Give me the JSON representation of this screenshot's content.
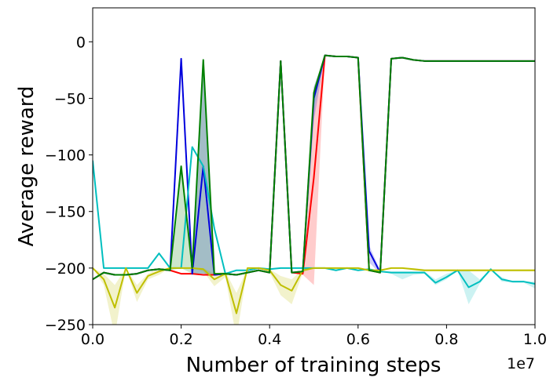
{
  "chart_data": {
    "type": "line",
    "title": "",
    "xlabel": "Number of training steps",
    "ylabel": "Average reward",
    "x_offset_label": "1e7",
    "xlim": [
      0,
      1.0
    ],
    "ylim": [
      -250,
      30
    ],
    "x_ticks": [
      0.0,
      0.2,
      0.4,
      0.6,
      0.8,
      1.0
    ],
    "x_tick_labels": [
      "0.0",
      "0.2",
      "0.4",
      "0.6",
      "0.8",
      "1.0"
    ],
    "y_ticks": [
      0,
      -50,
      -100,
      -150,
      -200,
      -250
    ],
    "y_tick_labels": [
      "0",
      "−50",
      "−100",
      "−150",
      "−200",
      "−250"
    ],
    "grid": false,
    "legend": "none",
    "series": [
      {
        "color": "#ff0000",
        "band_opacity": 0.2,
        "x": [
          0,
          0.025,
          0.05,
          0.075,
          0.1,
          0.125,
          0.15,
          0.175,
          0.2,
          0.225,
          0.25,
          0.275,
          0.3,
          0.325,
          0.35,
          0.375,
          0.4,
          0.425,
          0.45,
          0.475,
          0.5,
          0.525,
          0.55,
          0.575,
          0.6,
          0.625,
          0.65,
          0.675,
          0.7,
          0.725,
          0.75,
          0.775,
          0.8,
          0.825,
          0.85,
          0.875,
          0.9,
          0.925,
          0.95,
          0.975,
          1.0
        ],
        "values": [
          -210,
          -204,
          -206,
          -206,
          -205,
          -202,
          -201,
          -202,
          -205,
          -205,
          -206,
          -206,
          -205,
          -206,
          -204,
          -202,
          -204,
          -17,
          -204,
          -205,
          -120,
          -12,
          -13,
          -13,
          -14,
          -202,
          -204,
          -15,
          -14,
          -16,
          -17,
          -17,
          -17,
          -17,
          -17,
          -17,
          -17,
          -17,
          -17,
          -17,
          -17
        ],
        "upper": [
          -210,
          -204,
          -206,
          -206,
          -205,
          -202,
          -201,
          -202,
          -205,
          -205,
          -206,
          -206,
          -205,
          -206,
          -204,
          -202,
          -204,
          -17,
          -204,
          -204,
          -60,
          -12,
          -13,
          -13,
          -14,
          -202,
          -203,
          -15,
          -14,
          -16,
          -17,
          -17,
          -17,
          -17,
          -17,
          -17,
          -17,
          -17,
          -17,
          -17,
          -17
        ],
        "lower": [
          -210,
          -204,
          -206,
          -206,
          -205,
          -202,
          -201,
          -202,
          -205,
          -205,
          -206,
          -206,
          -205,
          -206,
          -204,
          -202,
          -204,
          -17,
          -204,
          -206,
          -215,
          -12,
          -13,
          -13,
          -14,
          -202,
          -205,
          -15,
          -14,
          -16,
          -17,
          -17,
          -17,
          -17,
          -17,
          -17,
          -17,
          -17,
          -17,
          -17,
          -17
        ]
      },
      {
        "color": "#0000dd",
        "band_opacity": 0.2,
        "x": [
          0,
          0.025,
          0.05,
          0.075,
          0.1,
          0.125,
          0.15,
          0.175,
          0.2,
          0.225,
          0.25,
          0.275,
          0.3,
          0.325,
          0.35,
          0.375,
          0.4,
          0.425,
          0.45,
          0.475,
          0.5,
          0.525,
          0.55,
          0.575,
          0.6,
          0.625,
          0.65,
          0.675,
          0.7,
          0.725,
          0.75,
          0.775,
          0.8,
          0.825,
          0.85,
          0.875,
          0.9,
          0.925,
          0.95,
          0.975,
          1.0
        ],
        "values": [
          -210,
          -204,
          -206,
          -206,
          -205,
          -202,
          -201,
          -202,
          -15,
          -205,
          -110,
          -206,
          -205,
          -206,
          -204,
          -202,
          -204,
          -17,
          -204,
          -203,
          -50,
          -12,
          -13,
          -13,
          -14,
          -185,
          -204,
          -15,
          -14,
          -16,
          -17,
          -17,
          -17,
          -17,
          -17,
          -17,
          -17,
          -17,
          -17,
          -17,
          -17
        ],
        "upper": [
          -210,
          -204,
          -206,
          -206,
          -205,
          -202,
          -201,
          -202,
          -15,
          -200,
          -16,
          -206,
          -205,
          -206,
          -204,
          -202,
          -204,
          -17,
          -204,
          -203,
          -40,
          -12,
          -13,
          -13,
          -14,
          -180,
          -202,
          -15,
          -14,
          -16,
          -17,
          -17,
          -17,
          -17,
          -17,
          -17,
          -17,
          -17,
          -17,
          -17,
          -17
        ],
        "lower": [
          -210,
          -204,
          -206,
          -206,
          -205,
          -202,
          -201,
          -202,
          -15,
          -205,
          -205,
          -206,
          -205,
          -206,
          -204,
          -202,
          -204,
          -17,
          -204,
          -204,
          -70,
          -12,
          -13,
          -13,
          -14,
          -195,
          -205,
          -15,
          -14,
          -16,
          -17,
          -17,
          -17,
          -17,
          -17,
          -17,
          -17,
          -17,
          -17,
          -17,
          -17
        ]
      },
      {
        "color": "#00bfbf",
        "band_opacity": 0.2,
        "x": [
          0,
          0.025,
          0.05,
          0.075,
          0.1,
          0.125,
          0.15,
          0.175,
          0.2,
          0.225,
          0.25,
          0.275,
          0.3,
          0.325,
          0.35,
          0.375,
          0.4,
          0.425,
          0.45,
          0.475,
          0.5,
          0.525,
          0.55,
          0.575,
          0.6,
          0.625,
          0.65,
          0.675,
          0.7,
          0.725,
          0.75,
          0.775,
          0.8,
          0.825,
          0.85,
          0.875,
          0.9,
          0.925,
          0.95,
          0.975,
          1.0
        ],
        "values": [
          -105,
          -200,
          -200,
          -200,
          -200,
          -200,
          -187,
          -200,
          -200,
          -93,
          -110,
          -165,
          -205,
          -202,
          -202,
          -200,
          -201,
          -200,
          -200,
          -200,
          -200,
          -200,
          -202,
          -200,
          -202,
          -201,
          -203,
          -204,
          -204,
          -204,
          -204,
          -213,
          -208,
          -202,
          -217,
          -212,
          -201,
          -210,
          -212,
          -212,
          -214
        ],
        "upper": [
          -105,
          -200,
          -200,
          -200,
          -200,
          -200,
          -187,
          -200,
          -200,
          -93,
          -110,
          -165,
          -205,
          -202,
          -202,
          -200,
          -201,
          -200,
          -200,
          -200,
          -200,
          -200,
          -202,
          -200,
          -202,
          -201,
          -203,
          -203,
          -203,
          -203,
          -203,
          -210,
          -205,
          -202,
          -202,
          -210,
          -201,
          -208,
          -212,
          -212,
          -212
        ],
        "lower": [
          -105,
          -200,
          -200,
          -200,
          -200,
          -200,
          -187,
          -200,
          -200,
          -93,
          -110,
          -165,
          -205,
          -202,
          -202,
          -200,
          -201,
          -200,
          -200,
          -200,
          -200,
          -200,
          -202,
          -200,
          -202,
          -201,
          -203,
          -205,
          -210,
          -206,
          -205,
          -215,
          -210,
          -202,
          -232,
          -214,
          -201,
          -212,
          -213,
          -213,
          -218
        ]
      },
      {
        "color": "#bfbf00",
        "band_opacity": 0.2,
        "x": [
          0,
          0.025,
          0.05,
          0.075,
          0.1,
          0.125,
          0.15,
          0.175,
          0.2,
          0.225,
          0.25,
          0.275,
          0.3,
          0.325,
          0.35,
          0.375,
          0.4,
          0.425,
          0.45,
          0.475,
          0.5,
          0.525,
          0.55,
          0.575,
          0.6,
          0.625,
          0.65,
          0.675,
          0.7,
          0.725,
          0.75,
          0.775,
          0.8,
          0.825,
          0.85,
          0.875,
          0.9,
          0.925,
          0.95,
          0.975,
          1.0
        ],
        "values": [
          -200,
          -210,
          -235,
          -200,
          -222,
          -207,
          -203,
          -200,
          -200,
          -200,
          -201,
          -210,
          -205,
          -240,
          -200,
          -200,
          -202,
          -215,
          -220,
          -202,
          -200,
          -200,
          -200,
          -200,
          -200,
          -202,
          -202,
          -200,
          -200,
          -201,
          -202,
          -202,
          -202,
          -202,
          -202,
          -202,
          -202,
          -202,
          -202,
          -202,
          -202
        ],
        "upper": [
          -200,
          -205,
          -215,
          -200,
          -215,
          -205,
          -200,
          -200,
          -200,
          -200,
          -200,
          -205,
          -203,
          -222,
          -200,
          -200,
          -201,
          -207,
          -210,
          -201,
          -200,
          -200,
          -200,
          -200,
          -200,
          -201,
          -201,
          -200,
          -200,
          -200,
          -201,
          -201,
          -201,
          -201,
          -201,
          -201,
          -201,
          -201,
          -201,
          -201,
          -201
        ],
        "lower": [
          -200,
          -215,
          -260,
          -200,
          -230,
          -210,
          -206,
          -200,
          -200,
          -200,
          -203,
          -216,
          -208,
          -262,
          -200,
          -200,
          -204,
          -224,
          -232,
          -204,
          -200,
          -200,
          -200,
          -200,
          -200,
          -203,
          -203,
          -200,
          -200,
          -202,
          -203,
          -203,
          -203,
          -203,
          -203,
          -203,
          -203,
          -203,
          -203,
          -203,
          -203
        ]
      },
      {
        "color": "#008000",
        "band_opacity": 0.2,
        "x": [
          0,
          0.025,
          0.05,
          0.075,
          0.1,
          0.125,
          0.15,
          0.175,
          0.2,
          0.225,
          0.25,
          0.275,
          0.3,
          0.325,
          0.35,
          0.375,
          0.4,
          0.425,
          0.45,
          0.475,
          0.5,
          0.525,
          0.55,
          0.575,
          0.6,
          0.625,
          0.65,
          0.675,
          0.7,
          0.725,
          0.75,
          0.775,
          0.8,
          0.825,
          0.85,
          0.875,
          0.9,
          0.925,
          0.95,
          0.975,
          1.0
        ],
        "values": [
          -210,
          -204,
          -206,
          -206,
          -205,
          -202,
          -201,
          -202,
          -110,
          -200,
          -16,
          -205,
          -205,
          -206,
          -204,
          -202,
          -204,
          -17,
          -204,
          -203,
          -45,
          -12,
          -13,
          -13,
          -14,
          -202,
          -204,
          -15,
          -14,
          -16,
          -17,
          -17,
          -17,
          -17,
          -17,
          -17,
          -17,
          -17,
          -17,
          -17,
          -17
        ],
        "upper": [
          -210,
          -204,
          -206,
          -206,
          -205,
          -202,
          -201,
          -202,
          -110,
          -200,
          -16,
          -205,
          -205,
          -206,
          -204,
          -202,
          -204,
          -17,
          -204,
          -203,
          -40,
          -12,
          -13,
          -13,
          -14,
          -202,
          -204,
          -15,
          -14,
          -16,
          -17,
          -17,
          -17,
          -17,
          -17,
          -17,
          -17,
          -17,
          -17,
          -17,
          -17
        ],
        "lower": [
          -210,
          -204,
          -206,
          -206,
          -205,
          -202,
          -201,
          -202,
          -200,
          -205,
          -205,
          -205,
          -205,
          -206,
          -204,
          -202,
          -204,
          -17,
          -204,
          -204,
          -60,
          -12,
          -13,
          -13,
          -14,
          -202,
          -204,
          -15,
          -14,
          -16,
          -17,
          -17,
          -17,
          -17,
          -17,
          -17,
          -17,
          -17,
          -17,
          -17,
          -17
        ]
      }
    ]
  }
}
